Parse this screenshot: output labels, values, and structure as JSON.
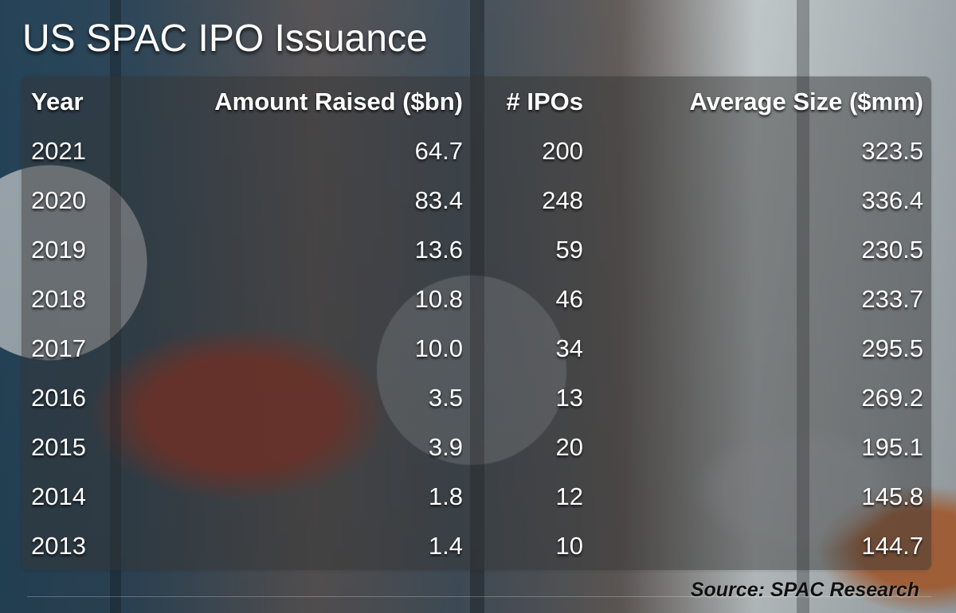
{
  "chart_data": {
    "type": "table",
    "title": "US SPAC IPO Issuance",
    "columns": [
      "Year",
      "Amount Raised ($bn)",
      "# IPOs",
      "Average Size ($mm)"
    ],
    "rows": [
      [
        "2021",
        "64.7",
        "200",
        "323.5"
      ],
      [
        "2020",
        "83.4",
        "248",
        "336.4"
      ],
      [
        "2019",
        "13.6",
        "59",
        "230.5"
      ],
      [
        "2018",
        "10.8",
        "46",
        "233.7"
      ],
      [
        "2017",
        "10.0",
        "34",
        "295.5"
      ],
      [
        "2016",
        "3.5",
        "13",
        "269.2"
      ],
      [
        "2015",
        "3.9",
        "20",
        "195.1"
      ],
      [
        "2014",
        "1.8",
        "12",
        "145.8"
      ],
      [
        "2013",
        "1.4",
        "10",
        "144.7"
      ]
    ],
    "source": "Source: SPAC Research"
  },
  "colors": {
    "text": "#ffffff",
    "source_text": "#111111"
  }
}
